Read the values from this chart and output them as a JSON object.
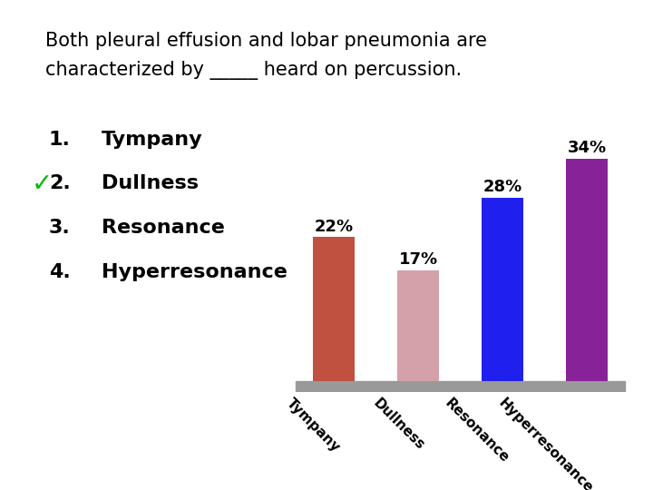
{
  "title_line1": "Both pleural effusion and lobar pneumonia are",
  "title_line2": "characterized by _____ heard on percussion.",
  "categories": [
    "Tympany",
    "Dullness",
    "Resonance",
    "Hyperresonance"
  ],
  "values": [
    22,
    17,
    28,
    34
  ],
  "bar_colors": [
    "#c05040",
    "#d4a0aa",
    "#2020ee",
    "#882299"
  ],
  "background_color": "#ffffff",
  "top_bar_color": "#c8960a",
  "bottom_bar_color": "#4a1878",
  "platform_color": "#999999",
  "ylabel_max": 38,
  "label_fontsize": 11,
  "bar_label_fontsize": 13,
  "list_fontsize": 16,
  "title_fontsize": 15,
  "checkmark_color": "#00bb00"
}
